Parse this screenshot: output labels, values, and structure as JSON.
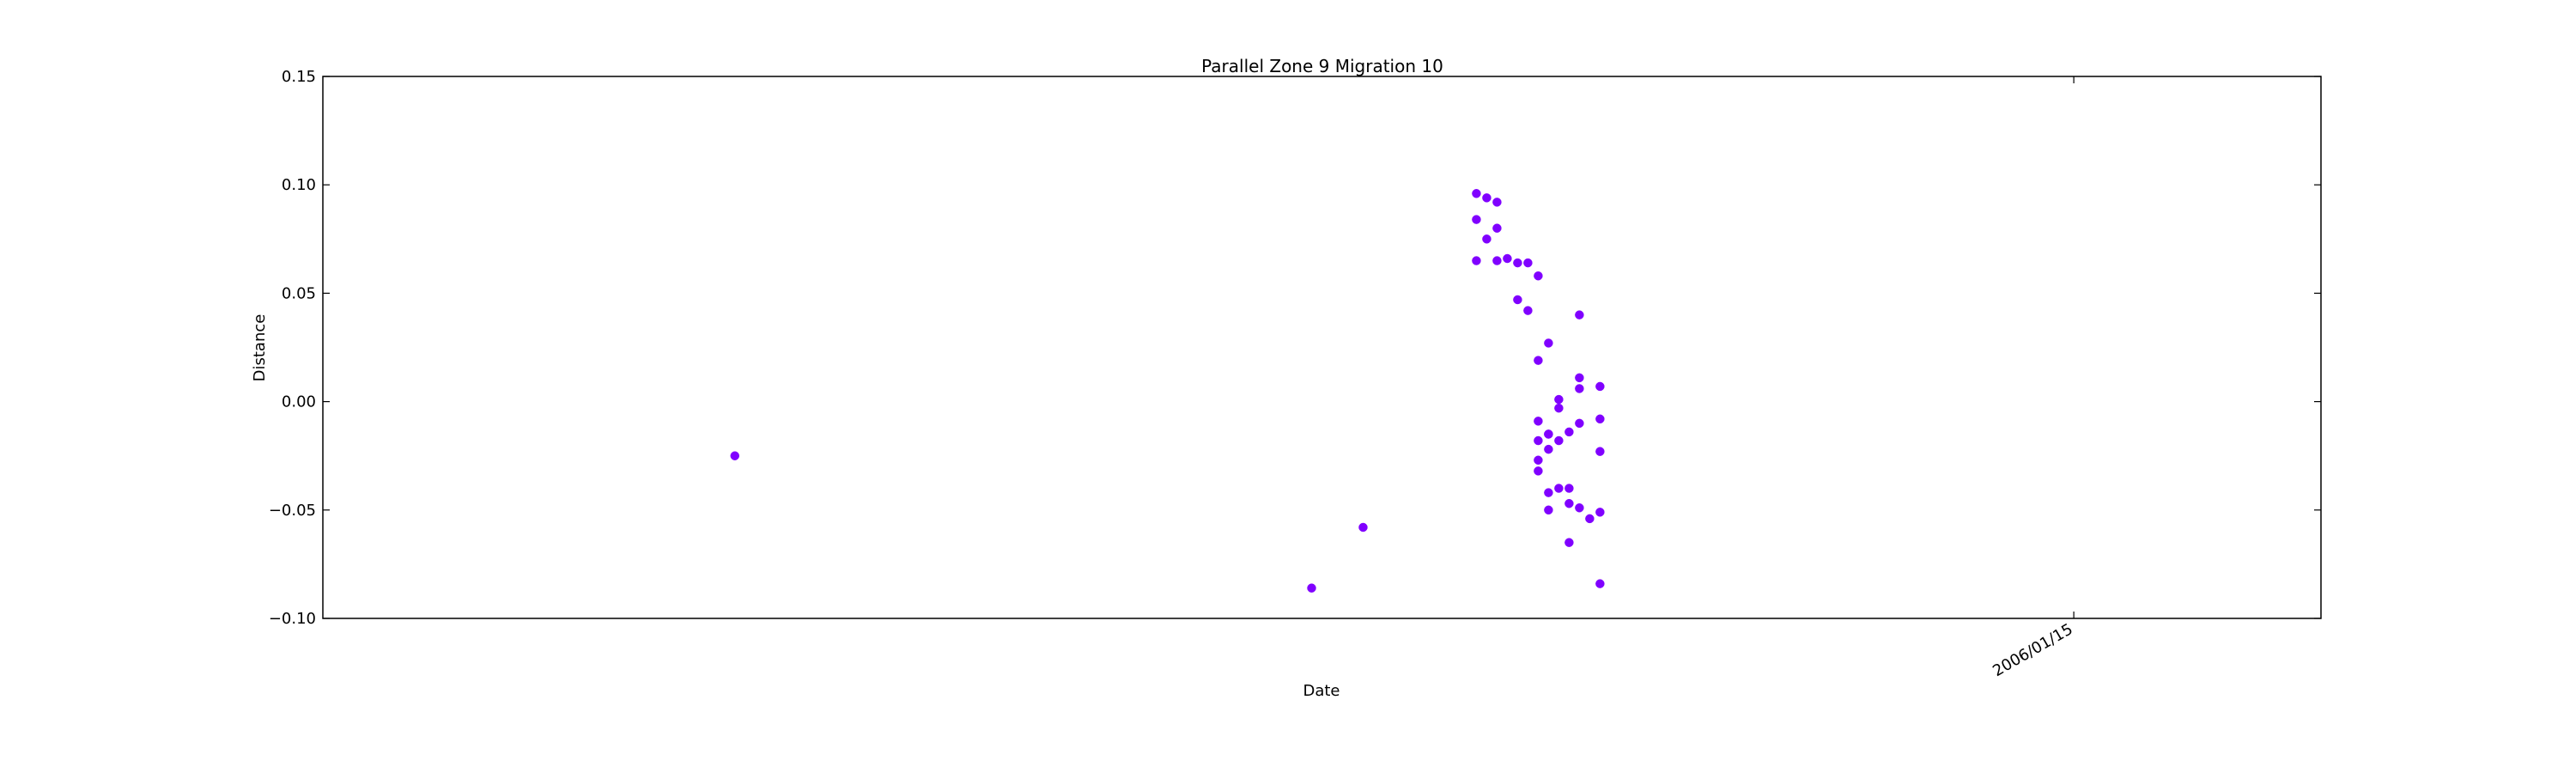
{
  "chart_data": {
    "type": "scatter",
    "title": "Parallel Zone 9 Migration 10",
    "xlabel": "Date",
    "ylabel": "Distance",
    "ylim": [
      -0.1,
      0.15
    ],
    "yticks": [
      "0.15",
      "0.10",
      "0.05",
      "0.00",
      "−0.05",
      "−0.10"
    ],
    "xticks": [
      "2006/01/15"
    ],
    "xlim": [
      "2005/07/29",
      "2006/02/08"
    ],
    "grid": false,
    "legend": "none",
    "marker_color": "#8000ff",
    "points": [
      {
        "x": "2005/09/07",
        "y": -0.025
      },
      {
        "x": "2005/11/02",
        "y": -0.086
      },
      {
        "x": "2005/11/07",
        "y": -0.058
      },
      {
        "x": "2005/11/18",
        "y": 0.084
      },
      {
        "x": "2005/11/18",
        "y": 0.096
      },
      {
        "x": "2005/11/18",
        "y": 0.065
      },
      {
        "x": "2005/11/19",
        "y": 0.075
      },
      {
        "x": "2005/11/19",
        "y": 0.094
      },
      {
        "x": "2005/11/20",
        "y": 0.092
      },
      {
        "x": "2005/11/20",
        "y": 0.065
      },
      {
        "x": "2005/11/20",
        "y": 0.08
      },
      {
        "x": "2005/11/21",
        "y": 0.066
      },
      {
        "x": "2005/11/22",
        "y": 0.064
      },
      {
        "x": "2005/11/22",
        "y": 0.047
      },
      {
        "x": "2005/11/23",
        "y": 0.064
      },
      {
        "x": "2005/11/23",
        "y": 0.042
      },
      {
        "x": "2005/11/24",
        "y": 0.058
      },
      {
        "x": "2005/11/24",
        "y": 0.019
      },
      {
        "x": "2005/11/24",
        "y": -0.009
      },
      {
        "x": "2005/11/24",
        "y": -0.018
      },
      {
        "x": "2005/11/24",
        "y": -0.027
      },
      {
        "x": "2005/11/24",
        "y": -0.032
      },
      {
        "x": "2005/11/25",
        "y": -0.015
      },
      {
        "x": "2005/11/25",
        "y": -0.022
      },
      {
        "x": "2005/11/25",
        "y": -0.042
      },
      {
        "x": "2005/11/25",
        "y": 0.027
      },
      {
        "x": "2005/11/25",
        "y": -0.015
      },
      {
        "x": "2005/11/25",
        "y": -0.05
      },
      {
        "x": "2005/11/26",
        "y": -0.04
      },
      {
        "x": "2005/11/26",
        "y": -0.003
      },
      {
        "x": "2005/11/26",
        "y": 0.001
      },
      {
        "x": "2005/11/26",
        "y": -0.018
      },
      {
        "x": "2005/11/27",
        "y": -0.047
      },
      {
        "x": "2005/11/27",
        "y": -0.014
      },
      {
        "x": "2005/11/27",
        "y": -0.065
      },
      {
        "x": "2005/11/27",
        "y": -0.04
      },
      {
        "x": "2005/11/28",
        "y": 0.011
      },
      {
        "x": "2005/11/28",
        "y": 0.006
      },
      {
        "x": "2005/11/28",
        "y": -0.049
      },
      {
        "x": "2005/11/28",
        "y": 0.04
      },
      {
        "x": "2005/11/28",
        "y": -0.01
      },
      {
        "x": "2005/11/29",
        "y": -0.054
      },
      {
        "x": "2005/11/30",
        "y": -0.084
      },
      {
        "x": "2005/11/30",
        "y": 0.007
      },
      {
        "x": "2005/11/30",
        "y": -0.051
      },
      {
        "x": "2005/11/30",
        "y": -0.008
      },
      {
        "x": "2005/11/30",
        "y": -0.023
      }
    ]
  }
}
